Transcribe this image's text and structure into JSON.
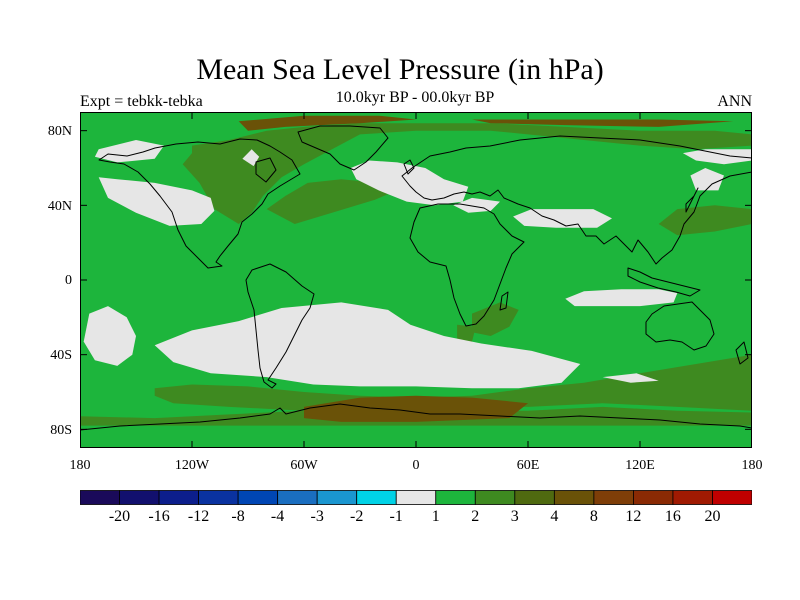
{
  "title": "Mean Sea Level Pressure (in hPa)",
  "subtitle": "10.0kyr BP - 00.0kyr BP",
  "experiment": "Expt = tebkk-tebka",
  "season": "ANN",
  "map": {
    "projection": "cylindrical equidistant",
    "lon_range": [
      -180,
      180
    ],
    "lat_range": [
      -90,
      90
    ],
    "coastlines": true,
    "background_color": "#1db53c"
  },
  "axes": {
    "lat_ticks": [
      {
        "value": 80,
        "label": "80N"
      },
      {
        "value": 40,
        "label": "40N"
      },
      {
        "value": 0,
        "label": "0"
      },
      {
        "value": -40,
        "label": "40S"
      },
      {
        "value": -80,
        "label": "80S"
      }
    ],
    "lon_ticks": [
      {
        "value": -180,
        "label": "180"
      },
      {
        "value": -120,
        "label": "120W"
      },
      {
        "value": -60,
        "label": "60W"
      },
      {
        "value": 0,
        "label": "0"
      },
      {
        "value": 60,
        "label": "60E"
      },
      {
        "value": 120,
        "label": "120E"
      },
      {
        "value": 180,
        "label": "180"
      }
    ]
  },
  "colorbar": {
    "colors": [
      "#1a0a5a",
      "#12106e",
      "#0c1e8c",
      "#0a32a0",
      "#0046b4",
      "#1a6ec0",
      "#1a96d0",
      "#00d2e6",
      "#e6e6e6",
      "#1db53c",
      "#3e8a20",
      "#4f6a10",
      "#6a5208",
      "#7e3e08",
      "#8a2a04",
      "#a01a02",
      "#c00000"
    ],
    "labels": [
      "-20",
      "-16",
      "-12",
      "-8",
      "-4",
      "-3",
      "-2",
      "-1",
      "1",
      "2",
      "3",
      "4",
      "8",
      "12",
      "16",
      "20"
    ]
  },
  "regions": {
    "light": [
      [
        [
          -170,
          70
        ],
        [
          -150,
          75
        ],
        [
          -135,
          72
        ],
        [
          -140,
          65
        ],
        [
          -160,
          63
        ],
        [
          -172,
          66
        ]
      ],
      [
        [
          -170,
          55
        ],
        [
          -160,
          54
        ],
        [
          -140,
          52
        ],
        [
          -120,
          48
        ],
        [
          -110,
          44
        ],
        [
          -108,
          37
        ],
        [
          -115,
          30
        ],
        [
          -132,
          29
        ],
        [
          -150,
          36
        ],
        [
          -165,
          44
        ]
      ],
      [
        [
          -93,
          65
        ],
        [
          -88,
          70
        ],
        [
          -84,
          66
        ],
        [
          -87,
          61
        ]
      ],
      [
        [
          -35,
          60
        ],
        [
          -25,
          64
        ],
        [
          -10,
          63
        ],
        [
          5,
          60
        ],
        [
          15,
          54
        ],
        [
          28,
          50
        ],
        [
          25,
          42
        ],
        [
          10,
          40
        ],
        [
          -5,
          42
        ],
        [
          -20,
          48
        ],
        [
          -32,
          54
        ]
      ],
      [
        [
          20,
          40
        ],
        [
          30,
          44
        ],
        [
          45,
          42
        ],
        [
          40,
          37
        ],
        [
          28,
          36
        ]
      ],
      [
        [
          143,
          68
        ],
        [
          155,
          70
        ],
        [
          180,
          70
        ],
        [
          180,
          64
        ],
        [
          165,
          62
        ],
        [
          150,
          64
        ]
      ],
      [
        [
          147,
          56
        ],
        [
          155,
          60
        ],
        [
          165,
          56
        ],
        [
          162,
          48
        ],
        [
          150,
          48
        ]
      ],
      [
        [
          52,
          34
        ],
        [
          62,
          38
        ],
        [
          95,
          38
        ],
        [
          105,
          33
        ],
        [
          97,
          28
        ],
        [
          75,
          28
        ],
        [
          58,
          29
        ]
      ],
      [
        [
          -175,
          -18
        ],
        [
          -165,
          -14
        ],
        [
          -155,
          -20
        ],
        [
          -150,
          -30
        ],
        [
          -152,
          -40
        ],
        [
          -160,
          -46
        ],
        [
          -172,
          -43
        ],
        [
          -178,
          -33
        ]
      ],
      [
        [
          -140,
          -35
        ],
        [
          -120,
          -27
        ],
        [
          -95,
          -22
        ],
        [
          -72,
          -15
        ],
        [
          -40,
          -12
        ],
        [
          -15,
          -16
        ],
        [
          -3,
          -24
        ],
        [
          15,
          -30
        ],
        [
          35,
          -34
        ],
        [
          62,
          -38
        ],
        [
          88,
          -45
        ],
        [
          78,
          -55
        ],
        [
          55,
          -58
        ],
        [
          30,
          -58
        ],
        [
          0,
          -57
        ],
        [
          -30,
          -57
        ],
        [
          -55,
          -56
        ],
        [
          -80,
          -52
        ],
        [
          -110,
          -50
        ],
        [
          -130,
          -44
        ]
      ],
      [
        [
          80,
          -10
        ],
        [
          90,
          -6
        ],
        [
          110,
          -5
        ],
        [
          130,
          -5
        ],
        [
          140,
          -7
        ],
        [
          138,
          -12
        ],
        [
          120,
          -14
        ],
        [
          100,
          -14
        ],
        [
          85,
          -14
        ]
      ],
      [
        [
          100,
          -52
        ],
        [
          115,
          -55
        ],
        [
          130,
          -54
        ],
        [
          118,
          -50
        ]
      ]
    ],
    "mid": [
      [
        [
          -140,
          -58
        ],
        [
          -120,
          -56
        ],
        [
          -90,
          -57
        ],
        [
          -60,
          -60
        ],
        [
          -30,
          -62
        ],
        [
          0,
          -63
        ],
        [
          30,
          -62
        ],
        [
          60,
          -58
        ],
        [
          90,
          -55
        ],
        [
          120,
          -50
        ],
        [
          150,
          -45
        ],
        [
          180,
          -40
        ],
        [
          180,
          -70
        ],
        [
          140,
          -68
        ],
        [
          100,
          -66
        ],
        [
          60,
          -68
        ],
        [
          20,
          -68
        ],
        [
          -20,
          -68
        ],
        [
          -60,
          -70
        ],
        [
          -100,
          -68
        ],
        [
          -130,
          -66
        ],
        [
          -140,
          -62
        ]
      ],
      [
        [
          -180,
          -73
        ],
        [
          -140,
          -74
        ],
        [
          -100,
          -72
        ],
        [
          -60,
          -70
        ],
        [
          -20,
          -70
        ],
        [
          20,
          -70
        ],
        [
          60,
          -70
        ],
        [
          100,
          -68
        ],
        [
          140,
          -70
        ],
        [
          180,
          -71
        ],
        [
          180,
          -78
        ],
        [
          -180,
          -78
        ]
      ],
      [
        [
          -120,
          72
        ],
        [
          -100,
          75
        ],
        [
          -80,
          80
        ],
        [
          -60,
          82
        ],
        [
          -30,
          84
        ],
        [
          0,
          84
        ],
        [
          40,
          84
        ],
        [
          80,
          82
        ],
        [
          120,
          80
        ],
        [
          160,
          80
        ],
        [
          180,
          78
        ],
        [
          180,
          72
        ],
        [
          150,
          70
        ],
        [
          120,
          72
        ],
        [
          80,
          76
        ],
        [
          40,
          80
        ],
        [
          0,
          80
        ],
        [
          -30,
          78
        ],
        [
          -45,
          70
        ],
        [
          -60,
          62
        ],
        [
          -72,
          55
        ],
        [
          -82,
          45
        ],
        [
          -88,
          36
        ],
        [
          -95,
          30
        ],
        [
          -108,
          38
        ],
        [
          -116,
          52
        ],
        [
          -125,
          62
        ],
        [
          -120,
          68
        ]
      ],
      [
        [
          -80,
          38
        ],
        [
          -70,
          45
        ],
        [
          -58,
          52
        ],
        [
          -40,
          54
        ],
        [
          -20,
          52
        ],
        [
          -10,
          48
        ],
        [
          -22,
          43
        ],
        [
          -45,
          36
        ],
        [
          -65,
          30
        ]
      ],
      [
        [
          130,
          30
        ],
        [
          140,
          38
        ],
        [
          160,
          40
        ],
        [
          180,
          38
        ],
        [
          180,
          30
        ],
        [
          160,
          26
        ],
        [
          140,
          24
        ]
      ],
      [
        [
          30,
          -18
        ],
        [
          45,
          -12
        ],
        [
          55,
          -16
        ],
        [
          50,
          -25
        ],
        [
          40,
          -30
        ],
        [
          30,
          -28
        ]
      ],
      [
        [
          22,
          -24
        ],
        [
          32,
          -25
        ],
        [
          30,
          -33
        ],
        [
          22,
          -33
        ]
      ]
    ],
    "dark": [
      [
        [
          -60,
          -68
        ],
        [
          -30,
          -63
        ],
        [
          0,
          -62
        ],
        [
          30,
          -63
        ],
        [
          60,
          -66
        ],
        [
          50,
          -74
        ],
        [
          0,
          -76
        ],
        [
          -40,
          -76
        ],
        [
          -60,
          -74
        ]
      ],
      [
        [
          -95,
          85
        ],
        [
          -60,
          88
        ],
        [
          -20,
          88
        ],
        [
          0,
          86
        ],
        [
          -30,
          84
        ],
        [
          -70,
          82
        ],
        [
          -90,
          80
        ]
      ],
      [
        [
          30,
          86
        ],
        [
          80,
          86
        ],
        [
          130,
          86
        ],
        [
          170,
          85
        ],
        [
          130,
          82
        ],
        [
          80,
          83
        ],
        [
          40,
          84
        ]
      ]
    ]
  }
}
